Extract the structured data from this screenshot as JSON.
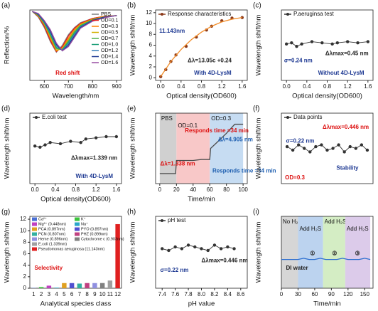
{
  "chart_data": [
    {
      "type": "line",
      "label": "(a)",
      "xlabel": "Wavelength/nm",
      "ylabel": "Reflection/%",
      "x": [
        550,
        575,
        600,
        625,
        650,
        675,
        700,
        725,
        750,
        800,
        850,
        900
      ],
      "xlim": [
        540,
        920
      ],
      "ylim": [
        0,
        100
      ],
      "xticks": [
        600,
        700,
        800,
        900
      ],
      "yticks": [],
      "legend": "upper right",
      "series": [
        {
          "name": "PBS",
          "color": "#7f7f7f",
          "values": [
            98,
            90,
            75,
            55,
            40,
            50,
            65,
            75,
            82,
            88,
            91,
            92
          ]
        },
        {
          "name": "OD=0.1",
          "color": "#e41a1c",
          "values": [
            98,
            91,
            77,
            57,
            41,
            48,
            63,
            74,
            81,
            88,
            91,
            92
          ]
        },
        {
          "name": "OD=0.3",
          "color": "#ff7f00",
          "values": [
            98,
            92,
            79,
            60,
            42,
            46,
            60,
            72,
            80,
            87,
            91,
            92
          ]
        },
        {
          "name": "OD=0.5",
          "color": "#d4b000",
          "values": [
            98,
            92,
            80,
            62,
            43,
            45,
            58,
            71,
            79,
            87,
            90,
            92
          ]
        },
        {
          "name": "OD=0.7",
          "color": "#4daf4a",
          "values": [
            98,
            93,
            81,
            64,
            45,
            44,
            56,
            69,
            78,
            86,
            90,
            92
          ]
        },
        {
          "name": "OD=1.0",
          "color": "#1b9e77",
          "values": [
            98,
            93,
            82,
            66,
            47,
            43,
            54,
            67,
            77,
            86,
            90,
            92
          ]
        },
        {
          "name": "OD=1.2",
          "color": "#377eb8",
          "values": [
            98,
            94,
            83,
            68,
            49,
            43,
            52,
            65,
            76,
            85,
            90,
            92
          ]
        },
        {
          "name": "OD=1.4",
          "color": "#1f3a93",
          "values": [
            98,
            94,
            84,
            70,
            51,
            42,
            50,
            63,
            75,
            85,
            90,
            92
          ]
        },
        {
          "name": "OD=1.6",
          "color": "#984ea3",
          "values": [
            98,
            95,
            85,
            72,
            53,
            42,
            48,
            61,
            74,
            84,
            89,
            92
          ]
        }
      ],
      "annotations": [
        "Red shift"
      ]
    },
    {
      "type": "line",
      "label": "(b)",
      "xlabel": "Optical density(OD600)",
      "ylabel": "Wavelength shift/nm",
      "xlim": [
        -0.1,
        1.7
      ],
      "ylim": [
        -0.5,
        12.5
      ],
      "xticks": [
        {
          "value": 0,
          "label": "0.0"
        },
        0.4,
        0.8,
        1.2,
        1.6
      ],
      "yticks": [
        0,
        2,
        4,
        6,
        8,
        10,
        12
      ],
      "legend": "upper left",
      "series": [
        {
          "name": "Response characteristics",
          "color": "#8b3a1a",
          "marker": true,
          "line": false,
          "x": [
            0,
            0.1,
            0.2,
            0.3,
            0.5,
            0.7,
            0.9,
            1.0,
            1.2,
            1.4,
            1.6
          ],
          "values": [
            0.2,
            1.5,
            3,
            4.2,
            5.8,
            7.5,
            8.8,
            9.5,
            10.5,
            11,
            11.1
          ]
        },
        {
          "color": "#f28c28",
          "x": [
            0,
            0.2,
            0.4,
            0.6,
            0.8,
            1.0,
            1.2,
            1.4,
            1.6
          ],
          "values": [
            0.2,
            3,
            5.2,
            7,
            8.4,
            9.5,
            10.3,
            10.8,
            11.1
          ]
        }
      ],
      "annotations": [
        "11.143nm",
        "Δλ=13.05c +0.24",
        "With 4D-LysM"
      ]
    },
    {
      "type": "line",
      "label": "(c)",
      "xlabel": "Optical density(OD600)",
      "ylabel": "Wavelength shift/nm",
      "x": [
        0,
        0.1,
        0.2,
        0.3,
        0.5,
        0.7,
        0.9,
        1.0,
        1.2,
        1.4,
        1.6
      ],
      "xlim": [
        -0.1,
        1.7
      ],
      "ylim": [
        -3,
        3
      ],
      "xticks": [
        {
          "value": 0,
          "label": "0.0"
        },
        0.4,
        0.8,
        1.2,
        1.6
      ],
      "yticks": [],
      "legend": "upper left",
      "series": [
        {
          "name": "P.aeruginsa test",
          "color": "#333333",
          "marker": true,
          "values": [
            0.1,
            0.2,
            -0.1,
            0.1,
            0.3,
            0.2,
            0.1,
            0.2,
            0.3,
            0.2,
            0.3
          ]
        }
      ],
      "annotations": [
        "Δλmax=0.45 nm",
        "σ=0.24 nm",
        "Without 4D-LysM"
      ]
    },
    {
      "type": "line",
      "label": "(d)",
      "xlabel": "Optical density(OD600)",
      "ylabel": "Wavelength shift/nm",
      "x": [
        0,
        0.1,
        0.2,
        0.3,
        0.5,
        0.7,
        0.9,
        1.0,
        1.2,
        1.4,
        1.6
      ],
      "xlim": [
        -0.1,
        1.7
      ],
      "ylim": [
        -3,
        3
      ],
      "xticks": [
        {
          "value": 0,
          "label": "0.0"
        },
        0.4,
        0.8,
        1.2,
        1.6
      ],
      "yticks": [],
      "legend": "upper left",
      "series": [
        {
          "name": "E.coli test",
          "color": "#333333",
          "marker": true,
          "values": [
            0.2,
            0.1,
            0.3,
            0.5,
            0.4,
            0.6,
            0.5,
            0.8,
            0.9,
            1.0,
            1.0
          ]
        }
      ],
      "annotations": [
        "Δλmax=1.339 nm",
        "With 4D-LysM"
      ]
    },
    {
      "type": "line",
      "label": "(e)",
      "xlabel": "Time/min",
      "ylabel": "Wavelength shift/nm",
      "x": [
        0,
        10,
        19,
        20,
        30,
        40,
        50,
        60,
        61,
        70,
        80,
        90,
        100
      ],
      "xlim": [
        -5,
        105
      ],
      "ylim": [
        -1,
        6
      ],
      "xticks": [
        0,
        20,
        40,
        60,
        80,
        100
      ],
      "yticks": [],
      "regions": [
        {
          "name": "PBS",
          "xlim": [
            0,
            20
          ],
          "color": "#d0d0d0"
        },
        {
          "name": "OD=0.1",
          "xlim": [
            20,
            60
          ],
          "color": "#f8c8c8"
        },
        {
          "name": "OD=0.3",
          "xlim": [
            60,
            100
          ],
          "color": "#c6dcf2"
        }
      ],
      "series": [
        {
          "color": "#4a4a4a",
          "values": [
            0,
            0,
            0,
            1.3,
            1.3,
            1.3,
            1.4,
            1.4,
            2.5,
            3.2,
            4.0,
            4.9,
            4.9
          ]
        }
      ],
      "annotations": [
        "Responds time =34 min",
        "Responds time =34 min",
        "Δλ=1.338 nm",
        "Δλ=4.905 nm"
      ]
    },
    {
      "type": "line",
      "label": "(f)",
      "xlabel": "",
      "ylabel": "Wavelength shift/nm",
      "x": [
        1,
        2,
        3,
        4,
        5,
        6,
        7,
        8,
        9,
        10,
        11,
        12,
        13,
        14,
        15
      ],
      "xlim": [
        0,
        16
      ],
      "ylim": [
        -2,
        2
      ],
      "xticks": [],
      "yticks": [],
      "legend": "upper left",
      "series": [
        {
          "name": "Data points",
          "color": "#333333",
          "marker": true,
          "values": [
            0.1,
            -0.1,
            0.2,
            0,
            -0.2,
            0.1,
            0.2,
            -0.1,
            0,
            0.2,
            -0.2,
            0.1,
            0,
            0.2,
            -0.1
          ]
        }
      ],
      "annotations": [
        "Δλmax=0.446 nm",
        "σ=0.22 nm",
        "Stability",
        "OD=0.3"
      ]
    },
    {
      "type": "bar",
      "label": "(g)",
      "xlabel": "Analytical species class",
      "ylabel": "Wavelength shift/nm",
      "categories": [
        "1",
        "2",
        "3",
        "4",
        "5",
        "6",
        "7",
        "8",
        "9",
        "10",
        "11",
        "12"
      ],
      "values": [
        0.05,
        0.2,
        0.448,
        0.1,
        0.897,
        0.897,
        0.807,
        0.899,
        0.896,
        0.903,
        1.339,
        11.143
      ],
      "colors": [
        "#4a6fd4",
        "#3cc43c",
        "#c040c0",
        "#2aa6c9",
        "#e0a020",
        "#5050d0",
        "#30b0a0",
        "#c04080",
        "#9090e0",
        "#808080",
        "#a0a0a0",
        "#e02020"
      ],
      "labels": [
        "Ca²⁺",
        "K⁺",
        "Mg²⁺ (0.448nm)",
        "Na⁺",
        "PCA (0.897nm)",
        "PYO (0.897nm)",
        "PCN (0.807nm)",
        "PHZ (0.899nm)",
        "Heme (0.896nm)",
        "Cytochrome c (0.903nm)",
        "E.coli (1.339nm)",
        "Pseudomonas aeruginosa (11.143nm)"
      ],
      "ylim": [
        0,
        12.5
      ],
      "yticks": [
        0,
        2,
        4,
        6,
        8,
        10,
        12
      ],
      "annotations": [
        "Selectivity"
      ]
    },
    {
      "type": "line",
      "label": "(h)",
      "xlabel": "pH value",
      "ylabel": "Wavelength shift/nm",
      "x": [
        7.4,
        7.5,
        7.6,
        7.7,
        7.8,
        7.9,
        8.0,
        8.1,
        8.2,
        8.3,
        8.4,
        8.5
      ],
      "xlim": [
        7.3,
        8.7
      ],
      "ylim": [
        -2,
        2
      ],
      "xticks": [
        7.4,
        7.6,
        7.8,
        {
          "value": 8,
          "label": "8.0"
        },
        8.2,
        8.4,
        8.6
      ],
      "yticks": [],
      "legend": "upper left",
      "series": [
        {
          "name": "pH test",
          "color": "#333333",
          "marker": true,
          "values": [
            0.2,
            0.1,
            0.3,
            0.2,
            0.4,
            0.3,
            0.2,
            0.1,
            0.4,
            0.2,
            0.3,
            0.2
          ]
        }
      ],
      "annotations": [
        "Δλmax=0.446 nm",
        "σ=0.22 nm"
      ]
    },
    {
      "type": "line",
      "label": "(i)",
      "xlabel": "Time/min",
      "ylabel": "Wavelength shift/nm",
      "x": [
        0,
        10,
        20,
        30,
        40,
        50,
        60,
        70,
        80,
        90,
        100,
        110,
        120,
        130,
        140,
        150,
        160
      ],
      "xlim": [
        0,
        165
      ],
      "ylim": [
        -1,
        2
      ],
      "xticks": [
        0,
        30,
        60,
        90,
        120,
        150
      ],
      "yticks": [],
      "regions": [
        {
          "name": "No H₂S",
          "xlim": [
            0,
            30
          ],
          "color": "#d6d6d6"
        },
        {
          "name": "Add H₂S",
          "xlim": [
            30,
            75
          ],
          "color": "#bcd3ef"
        },
        {
          "name": "Add H₂S",
          "xlim": [
            75,
            115
          ],
          "color": "#d4edc4"
        },
        {
          "name": "Add H₂S",
          "xlim": [
            115,
            160
          ],
          "color": "#dccbea"
        }
      ],
      "series": [
        {
          "color": "#2d6fd0",
          "values": [
            0.2,
            0.2,
            0.2,
            0.2,
            0.25,
            0.2,
            0.2,
            0.25,
            0.2,
            0.2,
            0.2,
            0.25,
            0.2,
            0.2,
            0.2,
            0.25,
            0.2
          ]
        }
      ],
      "annotations": [
        "DI water",
        "①",
        "②",
        "③"
      ]
    }
  ]
}
